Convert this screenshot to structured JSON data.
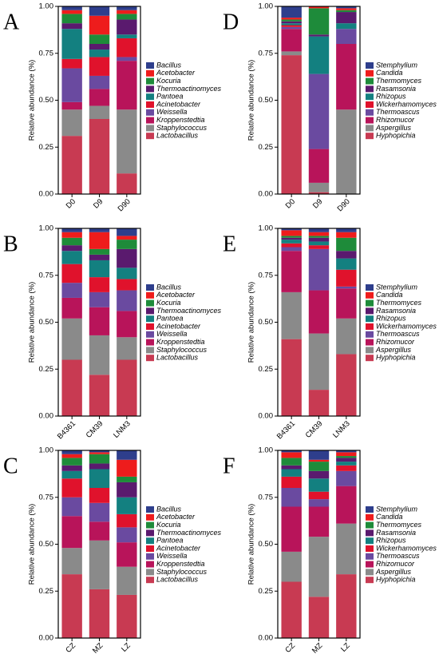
{
  "chart_data": [
    {
      "type": "bar",
      "stacked": true,
      "title": "A",
      "y_label": "Relative abundance (%)",
      "categories": [
        "D0",
        "D9",
        "D90"
      ],
      "series": [
        {
          "name": "Lactobacillus",
          "color": "#c83a52",
          "values": [
            0.31,
            0.4,
            0.11
          ]
        },
        {
          "name": "Staphylococcus",
          "color": "#8a8a8a",
          "values": [
            0.14,
            0.07,
            0.34
          ]
        },
        {
          "name": "Kroppenstedtia",
          "color": "#b8145a",
          "values": [
            0.04,
            0.09,
            0.26
          ]
        },
        {
          "name": "Weissella",
          "color": "#6a4aa0",
          "values": [
            0.18,
            0.07,
            0.02
          ]
        },
        {
          "name": "Acinetobacter",
          "color": "#e0122c",
          "values": [
            0.05,
            0.1,
            0.1
          ]
        },
        {
          "name": "Pantoea",
          "color": "#138080",
          "values": [
            0.16,
            0.04,
            0.02
          ]
        },
        {
          "name": "Thermoactinomyces",
          "color": "#5a1a6e",
          "values": [
            0.03,
            0.03,
            0.08
          ]
        },
        {
          "name": "Kocuria",
          "color": "#1e8b3a",
          "values": [
            0.05,
            0.05,
            0.03
          ]
        },
        {
          "name": "Acetobacter",
          "color": "#ee1c1c",
          "values": [
            0.02,
            0.1,
            0.02
          ]
        },
        {
          "name": "Bacillus",
          "color": "#2e3e8c",
          "values": [
            0.02,
            0.05,
            0.02
          ]
        }
      ],
      "ylim": [
        0,
        1
      ],
      "yticks": [
        {
          "value": 0,
          "label": "0.00"
        },
        {
          "value": 0.25,
          "label": "0.25"
        },
        {
          "value": 0.5,
          "label": "0.50"
        },
        {
          "value": 0.75,
          "label": "0.75"
        },
        {
          "value": 1,
          "label": "1.00"
        }
      ]
    },
    {
      "type": "bar",
      "stacked": true,
      "title": "D",
      "y_label": "Relative abundance (%)",
      "categories": [
        "D0",
        "D9",
        "D90"
      ],
      "series": [
        {
          "name": "Hyphopichia",
          "color": "#c83a52",
          "values": [
            0.74,
            0.01,
            0.0
          ]
        },
        {
          "name": "Aspergillus",
          "color": "#8a8a8a",
          "values": [
            0.02,
            0.05,
            0.45
          ]
        },
        {
          "name": "Rhizomucor",
          "color": "#b8145a",
          "values": [
            0.12,
            0.18,
            0.35
          ]
        },
        {
          "name": "Thermoascus",
          "color": "#6a4aa0",
          "values": [
            0.01,
            0.4,
            0.08
          ]
        },
        {
          "name": "Wickerhamomyces",
          "color": "#e0122c",
          "values": [
            0.01,
            0.0,
            0.0
          ]
        },
        {
          "name": "Rhizopus",
          "color": "#138080",
          "values": [
            0.01,
            0.2,
            0.03
          ]
        },
        {
          "name": "Rasamsonia",
          "color": "#5a1a6e",
          "values": [
            0.01,
            0.01,
            0.06
          ]
        },
        {
          "name": "Thermomyces",
          "color": "#1e8b3a",
          "values": [
            0.01,
            0.14,
            0.01
          ]
        },
        {
          "name": "Candida",
          "color": "#ee1c1c",
          "values": [
            0.01,
            0.01,
            0.01
          ]
        },
        {
          "name": "Stemphylium",
          "color": "#2e3e8c",
          "values": [
            0.06,
            0.0,
            0.01
          ]
        }
      ],
      "ylim": [
        0,
        1
      ],
      "yticks": [
        {
          "value": 0,
          "label": "0.00"
        },
        {
          "value": 0.25,
          "label": "0.25"
        },
        {
          "value": 0.5,
          "label": "0.50"
        },
        {
          "value": 0.75,
          "label": "0.75"
        },
        {
          "value": 1,
          "label": "1.00"
        }
      ]
    },
    {
      "type": "bar",
      "stacked": true,
      "title": "B",
      "y_label": "Relative abundance (%)",
      "categories": [
        "B4361",
        "CM39",
        "LNM3"
      ],
      "series": [
        {
          "name": "Lactobacillus",
          "color": "#c83a52",
          "values": [
            0.3,
            0.22,
            0.3
          ]
        },
        {
          "name": "Staphylococcus",
          "color": "#8a8a8a",
          "values": [
            0.22,
            0.21,
            0.12
          ]
        },
        {
          "name": "Kroppenstedtia",
          "color": "#b8145a",
          "values": [
            0.11,
            0.15,
            0.14
          ]
        },
        {
          "name": "Weissella",
          "color": "#6a4aa0",
          "values": [
            0.08,
            0.08,
            0.11
          ]
        },
        {
          "name": "Acinetobacter",
          "color": "#e0122c",
          "values": [
            0.1,
            0.08,
            0.06
          ]
        },
        {
          "name": "Pantoea",
          "color": "#138080",
          "values": [
            0.07,
            0.09,
            0.06
          ]
        },
        {
          "name": "Thermoactinomyces",
          "color": "#5a1a6e",
          "values": [
            0.03,
            0.03,
            0.1
          ]
        },
        {
          "name": "Kocuria",
          "color": "#1e8b3a",
          "values": [
            0.04,
            0.03,
            0.05
          ]
        },
        {
          "name": "Acetobacter",
          "color": "#ee1c1c",
          "values": [
            0.03,
            0.09,
            0.02
          ]
        },
        {
          "name": "Bacillus",
          "color": "#2e3e8c",
          "values": [
            0.02,
            0.02,
            0.04
          ]
        }
      ],
      "ylim": [
        0,
        1
      ],
      "yticks": [
        {
          "value": 0,
          "label": "0.00"
        },
        {
          "value": 0.25,
          "label": "0.25"
        },
        {
          "value": 0.5,
          "label": "0.50"
        },
        {
          "value": 0.75,
          "label": "0.75"
        },
        {
          "value": 1,
          "label": "1.00"
        }
      ]
    },
    {
      "type": "bar",
      "stacked": true,
      "title": "E",
      "y_label": "Relative abundance (%)",
      "categories": [
        "B4361",
        "CM39",
        "LNM3"
      ],
      "series": [
        {
          "name": "Hyphopichia",
          "color": "#c83a52",
          "values": [
            0.41,
            0.14,
            0.33
          ]
        },
        {
          "name": "Aspergillus",
          "color": "#8a8a8a",
          "values": [
            0.25,
            0.3,
            0.19
          ]
        },
        {
          "name": "Rhizomucor",
          "color": "#b8145a",
          "values": [
            0.22,
            0.23,
            0.16
          ]
        },
        {
          "name": "Thermoascus",
          "color": "#6a4aa0",
          "values": [
            0.02,
            0.22,
            0.01
          ]
        },
        {
          "name": "Wickerhamomyces",
          "color": "#e0122c",
          "values": [
            0.02,
            0.02,
            0.09
          ]
        },
        {
          "name": "Rhizopus",
          "color": "#138080",
          "values": [
            0.02,
            0.02,
            0.06
          ]
        },
        {
          "name": "Rasamsonia",
          "color": "#5a1a6e",
          "values": [
            0.01,
            0.02,
            0.04
          ]
        },
        {
          "name": "Thermomyces",
          "color": "#1e8b3a",
          "values": [
            0.01,
            0.01,
            0.07
          ]
        },
        {
          "name": "Candida",
          "color": "#ee1c1c",
          "values": [
            0.03,
            0.02,
            0.03
          ]
        },
        {
          "name": "Stemphylium",
          "color": "#2e3e8c",
          "values": [
            0.01,
            0.02,
            0.02
          ]
        }
      ],
      "ylim": [
        0,
        1
      ],
      "yticks": [
        {
          "value": 0,
          "label": "0.00"
        },
        {
          "value": 0.25,
          "label": "0.25"
        },
        {
          "value": 0.5,
          "label": "0.50"
        },
        {
          "value": 0.75,
          "label": "0.75"
        },
        {
          "value": 1,
          "label": "1.00"
        }
      ]
    },
    {
      "type": "bar",
      "stacked": true,
      "title": "C",
      "y_label": "Relative abundance (%)",
      "categories": [
        "CZ",
        "MZ",
        "LZ"
      ],
      "series": [
        {
          "name": "Lactobacillus",
          "color": "#c83a52",
          "values": [
            0.34,
            0.26,
            0.23
          ]
        },
        {
          "name": "Staphylococcus",
          "color": "#8a8a8a",
          "values": [
            0.14,
            0.26,
            0.15
          ]
        },
        {
          "name": "Kroppenstedtia",
          "color": "#b8145a",
          "values": [
            0.17,
            0.1,
            0.13
          ]
        },
        {
          "name": "Weissella",
          "color": "#6a4aa0",
          "values": [
            0.1,
            0.1,
            0.08
          ]
        },
        {
          "name": "Acinetobacter",
          "color": "#e0122c",
          "values": [
            0.1,
            0.08,
            0.07
          ]
        },
        {
          "name": "Pantoea",
          "color": "#138080",
          "values": [
            0.04,
            0.1,
            0.09
          ]
        },
        {
          "name": "Thermoactinomyces",
          "color": "#5a1a6e",
          "values": [
            0.03,
            0.03,
            0.08
          ]
        },
        {
          "name": "Kocuria",
          "color": "#1e8b3a",
          "values": [
            0.04,
            0.05,
            0.03
          ]
        },
        {
          "name": "Acetobacter",
          "color": "#ee1c1c",
          "values": [
            0.02,
            0.01,
            0.09
          ]
        },
        {
          "name": "Bacillus",
          "color": "#2e3e8c",
          "values": [
            0.02,
            0.01,
            0.05
          ]
        }
      ],
      "ylim": [
        0,
        1
      ],
      "yticks": [
        {
          "value": 0,
          "label": "0.00"
        },
        {
          "value": 0.25,
          "label": "0.25"
        },
        {
          "value": 0.5,
          "label": "0.50"
        },
        {
          "value": 0.75,
          "label": "0.75"
        },
        {
          "value": 1,
          "label": "1.00"
        }
      ]
    },
    {
      "type": "bar",
      "stacked": true,
      "title": "F",
      "y_label": "Relative abundance (%)",
      "categories": [
        "CZ",
        "MZ",
        "LZ"
      ],
      "series": [
        {
          "name": "Hyphopichia",
          "color": "#c83a52",
          "values": [
            0.3,
            0.22,
            0.34
          ]
        },
        {
          "name": "Aspergillus",
          "color": "#8a8a8a",
          "values": [
            0.16,
            0.32,
            0.27
          ]
        },
        {
          "name": "Rhizomucor",
          "color": "#b8145a",
          "values": [
            0.24,
            0.16,
            0.2
          ]
        },
        {
          "name": "Thermoascus",
          "color": "#6a4aa0",
          "values": [
            0.1,
            0.04,
            0.08
          ]
        },
        {
          "name": "Wickerhamomyces",
          "color": "#e0122c",
          "values": [
            0.06,
            0.04,
            0.03
          ]
        },
        {
          "name": "Rhizopus",
          "color": "#138080",
          "values": [
            0.04,
            0.07,
            0.02
          ]
        },
        {
          "name": "Rasamsonia",
          "color": "#5a1a6e",
          "values": [
            0.02,
            0.04,
            0.02
          ]
        },
        {
          "name": "Thermomyces",
          "color": "#1e8b3a",
          "values": [
            0.04,
            0.05,
            0.01
          ]
        },
        {
          "name": "Candida",
          "color": "#ee1c1c",
          "values": [
            0.03,
            0.01,
            0.02
          ]
        },
        {
          "name": "Stemphylium",
          "color": "#2e3e8c",
          "values": [
            0.01,
            0.05,
            0.01
          ]
        }
      ],
      "ylim": [
        0,
        1
      ],
      "yticks": [
        {
          "value": 0,
          "label": "0.00"
        },
        {
          "value": 0.25,
          "label": "0.25"
        },
        {
          "value": 0.5,
          "label": "0.50"
        },
        {
          "value": 0.75,
          "label": "0.75"
        },
        {
          "value": 1,
          "label": "1.00"
        }
      ]
    }
  ]
}
